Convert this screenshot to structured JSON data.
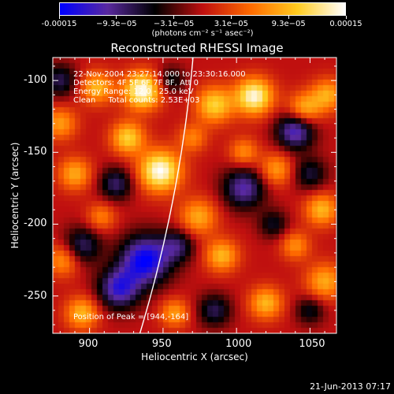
{
  "colorbar": {
    "tick_labels": [
      "-0.00015",
      "−9.3e−05",
      "−3.1e−05",
      "3.1e−05",
      "9.3e−05",
      "0.00015"
    ],
    "unit": "(photons cm⁻² s⁻¹ asec⁻²)"
  },
  "title": "Reconstructed RHESSI Image",
  "info": {
    "time": "22-Nov-2004 23:27:14.000 to 23:30:16.000",
    "detectors": "Detectors: 4F 5F 6F 7F 8F, Att 0",
    "energy": "Energy Range: 12.0 - 25.0 keV",
    "clean": "Clean     Total counts: 2.53E+03",
    "peak": "Position of Peak = [944,-164]"
  },
  "timestamp": "21-Jun-2013 07:17",
  "chart_data": {
    "type": "heatmap",
    "title": "Reconstructed RHESSI Image",
    "xlabel": "Heliocentric X (arcsec)",
    "ylabel": "Heliocentric Y (arcsec)",
    "xlim": [
      875,
      1068
    ],
    "ylim": [
      -276,
      -84
    ],
    "x_ticks": [
      900,
      950,
      1000,
      1050
    ],
    "y_ticks": [
      -100,
      -150,
      -200,
      -250
    ],
    "color_range": [
      -0.00015,
      0.00015
    ],
    "colormap": [
      "#0000ff",
      "#5a2aa0",
      "#000000",
      "#c01010",
      "#ff6a00",
      "#ffcc20",
      "#ffffff"
    ],
    "peak": [
      944,
      -164
    ],
    "blobs": [
      {
        "x": 936,
        "y": -107,
        "v": 1.0,
        "s": 9
      },
      {
        "x": 948,
        "y": -163,
        "v": 1.0,
        "s": 10
      },
      {
        "x": 1012,
        "y": -111,
        "v": 0.95,
        "s": 9
      },
      {
        "x": 985,
        "y": -117,
        "v": 0.7,
        "s": 9
      },
      {
        "x": 926,
        "y": -140,
        "v": 0.7,
        "s": 8
      },
      {
        "x": 905,
        "y": -105,
        "v": 0.6,
        "s": 8
      },
      {
        "x": 880,
        "y": -130,
        "v": 0.5,
        "s": 8
      },
      {
        "x": 890,
        "y": -165,
        "v": 0.55,
        "s": 8
      },
      {
        "x": 908,
        "y": -195,
        "v": 0.4,
        "s": 7
      },
      {
        "x": 974,
        "y": -195,
        "v": 0.55,
        "s": 9
      },
      {
        "x": 990,
        "y": -222,
        "v": 0.6,
        "s": 8
      },
      {
        "x": 1046,
        "y": -120,
        "v": 0.6,
        "s": 8
      },
      {
        "x": 1062,
        "y": -110,
        "v": 0.55,
        "s": 8
      },
      {
        "x": 1027,
        "y": -162,
        "v": 0.5,
        "s": 8
      },
      {
        "x": 1058,
        "y": -190,
        "v": 0.6,
        "s": 8
      },
      {
        "x": 1060,
        "y": -240,
        "v": 0.55,
        "s": 9
      },
      {
        "x": 1020,
        "y": -255,
        "v": 0.6,
        "s": 8
      },
      {
        "x": 958,
        "y": -262,
        "v": 0.5,
        "s": 7
      },
      {
        "x": 895,
        "y": -262,
        "v": 0.6,
        "s": 8
      },
      {
        "x": 882,
        "y": -225,
        "v": 0.5,
        "s": 8
      },
      {
        "x": 1005,
        "y": -150,
        "v": 0.45,
        "s": 7
      },
      {
        "x": 970,
        "y": -140,
        "v": 0.4,
        "s": 7
      },
      {
        "x": 1040,
        "y": -215,
        "v": 0.45,
        "s": 7
      },
      {
        "x": 955,
        "y": -100,
        "v": -0.4,
        "s": 7
      },
      {
        "x": 1040,
        "y": -135,
        "v": -0.8,
        "s": 9
      },
      {
        "x": 1005,
        "y": -175,
        "v": -0.7,
        "s": 10
      },
      {
        "x": 938,
        "y": -225,
        "v": -1.0,
        "s": 12
      },
      {
        "x": 920,
        "y": -245,
        "v": -0.8,
        "s": 10
      },
      {
        "x": 895,
        "y": -215,
        "v": -0.55,
        "s": 9
      },
      {
        "x": 918,
        "y": -172,
        "v": -0.55,
        "s": 8
      },
      {
        "x": 880,
        "y": -100,
        "v": -0.5,
        "s": 8
      },
      {
        "x": 960,
        "y": -215,
        "v": -0.5,
        "s": 8
      },
      {
        "x": 985,
        "y": -260,
        "v": -0.5,
        "s": 8
      },
      {
        "x": 1025,
        "y": -200,
        "v": -0.4,
        "s": 7
      },
      {
        "x": 1050,
        "y": -260,
        "v": -0.4,
        "s": 7
      },
      {
        "x": 1050,
        "y": -165,
        "v": -0.45,
        "s": 8
      }
    ]
  }
}
